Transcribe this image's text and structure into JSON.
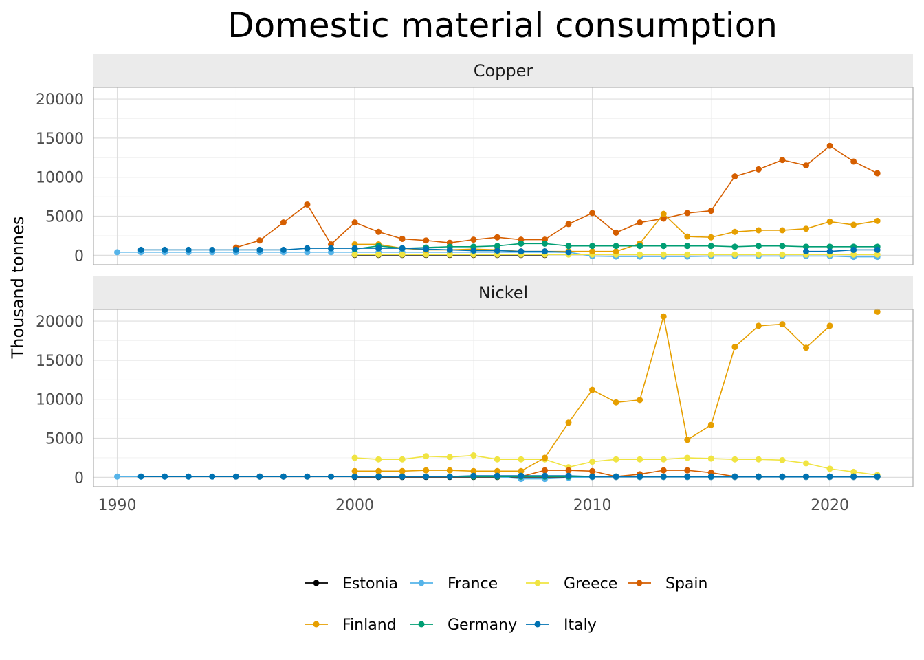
{
  "chart_data": {
    "type": "line",
    "title": "Domestic material consumption",
    "ylabel": "Thousand tonnes",
    "xlabel": "",
    "xlim": [
      1989,
      2023.5
    ],
    "ylim": [
      -1200,
      21500
    ],
    "x_ticks": [
      1990,
      2000,
      2010,
      2020
    ],
    "y_ticks": [
      0,
      5000,
      10000,
      15000,
      20000
    ],
    "grid": true,
    "legend_position": "bottom",
    "colors": {
      "Estonia": "#000000",
      "France": "#56b4e9",
      "Greece": "#f0e442",
      "Spain": "#d55e00",
      "Finland": "#e69f00",
      "Germany": "#009e73",
      "Italy": "#0072b2"
    },
    "legend": {
      "row1": [
        "Estonia",
        "France",
        "Greece",
        "Spain"
      ],
      "row2": [
        "Finland",
        "Germany",
        "Italy"
      ]
    },
    "panels": [
      {
        "label": "Copper",
        "series": [
          {
            "name": "Estonia",
            "x": [
              2000,
              2001,
              2002,
              2003,
              2004,
              2005,
              2006,
              2007,
              2008
            ],
            "values": [
              50,
              50,
              50,
              50,
              50,
              50,
              50,
              50,
              50
            ]
          },
          {
            "name": "France",
            "x": [
              1990,
              1991,
              1992,
              1993,
              1994,
              1995,
              1996,
              1997,
              1998,
              1999,
              2000,
              2001,
              2002,
              2003,
              2004,
              2005,
              2006,
              2007,
              2008,
              2009,
              2010,
              2011,
              2012,
              2013,
              2014,
              2015,
              2016,
              2017,
              2018,
              2019,
              2020,
              2021,
              2022
            ],
            "values": [
              400,
              400,
              400,
              400,
              400,
              400,
              400,
              400,
              400,
              400,
              400,
              400,
              400,
              400,
              400,
              400,
              400,
              400,
              400,
              400,
              -100,
              -150,
              -150,
              -150,
              -150,
              -100,
              -100,
              -100,
              -100,
              -100,
              -100,
              -200,
              -200
            ]
          },
          {
            "name": "Greece",
            "x": [
              2000,
              2001,
              2002,
              2003,
              2004,
              2005,
              2006,
              2007,
              2008,
              2009,
              2010,
              2011,
              2012,
              2013,
              2014,
              2015,
              2016,
              2017,
              2018,
              2019,
              2020,
              2021,
              2022
            ],
            "values": [
              100,
              100,
              100,
              100,
              100,
              100,
              100,
              100,
              100,
              100,
              100,
              100,
              100,
              100,
              100,
              100,
              100,
              100,
              100,
              100,
              100,
              100,
              100
            ]
          },
          {
            "name": "Spain",
            "x": [
              1995,
              1996,
              1997,
              1998,
              1999,
              2000,
              2001,
              2002,
              2003,
              2004,
              2005,
              2006,
              2007,
              2008,
              2009,
              2010,
              2011,
              2012,
              2013,
              2014,
              2015,
              2016,
              2017,
              2018,
              2019,
              2020,
              2021,
              2022
            ],
            "values": [
              1000,
              1900,
              4200,
              6500,
              1400,
              4200,
              3000,
              2100,
              1900,
              1600,
              2000,
              2300,
              2000,
              2000,
              4000,
              5400,
              2900,
              4200,
              4700,
              5400,
              5700,
              10100,
              11000,
              12200,
              11500,
              14000,
              12000,
              10500
            ]
          },
          {
            "name": "Finland",
            "x": [
              2000,
              2001,
              2002,
              2003,
              2004,
              2005,
              2006,
              2007,
              2008,
              2009,
              2010,
              2011,
              2012,
              2013,
              2014,
              2015,
              2016,
              2017,
              2018,
              2019,
              2020,
              2021,
              2022
            ],
            "values": [
              1400,
              1400,
              900,
              700,
              700,
              800,
              700,
              500,
              500,
              500,
              500,
              500,
              1500,
              5300,
              2400,
              2300,
              3000,
              3200,
              3200,
              3400,
              4300,
              3900,
              4400
            ]
          },
          {
            "name": "Germany",
            "x": [
              2000,
              2001,
              2002,
              2003,
              2004,
              2005,
              2006,
              2007,
              2008,
              2009,
              2010,
              2011,
              2012,
              2013,
              2014,
              2015,
              2016,
              2017,
              2018,
              2019,
              2020,
              2021,
              2022
            ],
            "values": [
              800,
              1200,
              900,
              1000,
              1100,
              1100,
              1200,
              1500,
              1500,
              1200,
              1200,
              1200,
              1200,
              1200,
              1200,
              1200,
              1100,
              1200,
              1200,
              1100,
              1100,
              1100,
              1100
            ]
          },
          {
            "name": "Italy",
            "x": [
              1991,
              1992,
              1993,
              1994,
              1995,
              1996,
              1997,
              1998,
              1999,
              2000,
              2001,
              2002,
              2003,
              2004,
              2005,
              2006,
              2007,
              2008,
              2009,
              2019,
              2020,
              2021,
              2022
            ],
            "values": [
              700,
              700,
              700,
              700,
              700,
              700,
              700,
              900,
              900,
              900,
              900,
              900,
              800,
              700,
              600,
              600,
              500,
              500,
              400,
              500,
              500,
              700,
              700
            ]
          }
        ]
      },
      {
        "label": "Nickel",
        "series": [
          {
            "name": "Estonia",
            "x": [
              2000,
              2001,
              2002,
              2003,
              2004,
              2005,
              2006,
              2007,
              2008,
              2009,
              2010,
              2011,
              2012,
              2013,
              2014,
              2015,
              2016,
              2017,
              2018,
              2019,
              2020,
              2021,
              2022
            ],
            "values": [
              50,
              50,
              50,
              50,
              50,
              50,
              50,
              50,
              50,
              50,
              50,
              50,
              50,
              50,
              50,
              50,
              50,
              50,
              50,
              50,
              50,
              50,
              50
            ]
          },
          {
            "name": "France",
            "x": [
              1990,
              1991,
              1992,
              1993,
              1994,
              1995,
              1996,
              1997,
              1998,
              1999,
              2000,
              2001,
              2002,
              2003,
              2004,
              2005,
              2006,
              2007,
              2008,
              2009,
              2010,
              2011,
              2012,
              2013,
              2014,
              2015,
              2016,
              2017,
              2018,
              2019,
              2020,
              2021,
              2022
            ],
            "values": [
              100,
              100,
              100,
              100,
              100,
              100,
              100,
              100,
              100,
              100,
              100,
              100,
              100,
              100,
              100,
              100,
              100,
              -200,
              -200,
              -50,
              50,
              50,
              50,
              50,
              50,
              50,
              50,
              50,
              50,
              50,
              50,
              50,
              50
            ]
          },
          {
            "name": "Greece",
            "x": [
              2000,
              2001,
              2002,
              2003,
              2004,
              2005,
              2006,
              2007,
              2008,
              2009,
              2010,
              2011,
              2012,
              2013,
              2014,
              2015,
              2016,
              2017,
              2018,
              2019,
              2020,
              2021,
              2022
            ],
            "values": [
              2500,
              2300,
              2300,
              2700,
              2600,
              2800,
              2300,
              2300,
              2300,
              1300,
              2000,
              2300,
              2300,
              2300,
              2500,
              2400,
              2300,
              2300,
              2200,
              1800,
              1100,
              700,
              300
            ]
          },
          {
            "name": "Spain",
            "x": [
              1995,
              1996,
              1997,
              1998,
              1999,
              2000,
              2001,
              2002,
              2003,
              2004,
              2005,
              2006,
              2007,
              2008,
              2009,
              2010,
              2011,
              2012,
              2013,
              2014,
              2015,
              2016,
              2017,
              2018,
              2019,
              2020,
              2021,
              2022
            ],
            "values": [
              100,
              100,
              100,
              100,
              100,
              100,
              100,
              100,
              100,
              100,
              100,
              100,
              100,
              900,
              900,
              800,
              100,
              400,
              900,
              900,
              600,
              100,
              100,
              100,
              100,
              100,
              100,
              100
            ]
          },
          {
            "name": "Finland",
            "x": [
              2000,
              2001,
              2002,
              2003,
              2004,
              2005,
              2006,
              2007,
              2008,
              2009,
              2010,
              2011,
              2012,
              2013,
              2014,
              2015,
              2016,
              2017,
              2018,
              2019,
              2020,
              2022
            ],
            "values": [
              800,
              800,
              800,
              900,
              900,
              800,
              800,
              800,
              2500,
              7000,
              11200,
              9600,
              9900,
              20600,
              4800,
              6700,
              16700,
              19400,
              19600,
              16600,
              19400,
              21200
            ]
          },
          {
            "name": "Germany",
            "x": [
              2000,
              2001,
              2002,
              2003,
              2004,
              2005,
              2006,
              2007,
              2008,
              2009,
              2010,
              2011,
              2012,
              2013,
              2014,
              2015,
              2016,
              2017,
              2018,
              2019,
              2020,
              2021,
              2022
            ],
            "values": [
              100,
              100,
              100,
              100,
              100,
              100,
              100,
              100,
              100,
              100,
              100,
              100,
              100,
              100,
              100,
              100,
              100,
              100,
              100,
              100,
              100,
              100,
              100
            ]
          },
          {
            "name": "Italy",
            "x": [
              1991,
              1992,
              1993,
              1994,
              1995,
              1996,
              1997,
              1998,
              1999,
              2000,
              2001,
              2002,
              2003,
              2004,
              2005,
              2006,
              2007,
              2008,
              2009,
              2010,
              2011,
              2012,
              2013,
              2014,
              2015,
              2016,
              2017,
              2018,
              2019,
              2020,
              2021,
              2022
            ],
            "values": [
              100,
              100,
              100,
              100,
              100,
              100,
              100,
              100,
              100,
              100,
              100,
              100,
              100,
              100,
              200,
              200,
              200,
              200,
              200,
              100,
              100,
              100,
              100,
              100,
              100,
              100,
              100,
              100,
              100,
              100,
              100,
              100
            ]
          }
        ]
      }
    ]
  }
}
